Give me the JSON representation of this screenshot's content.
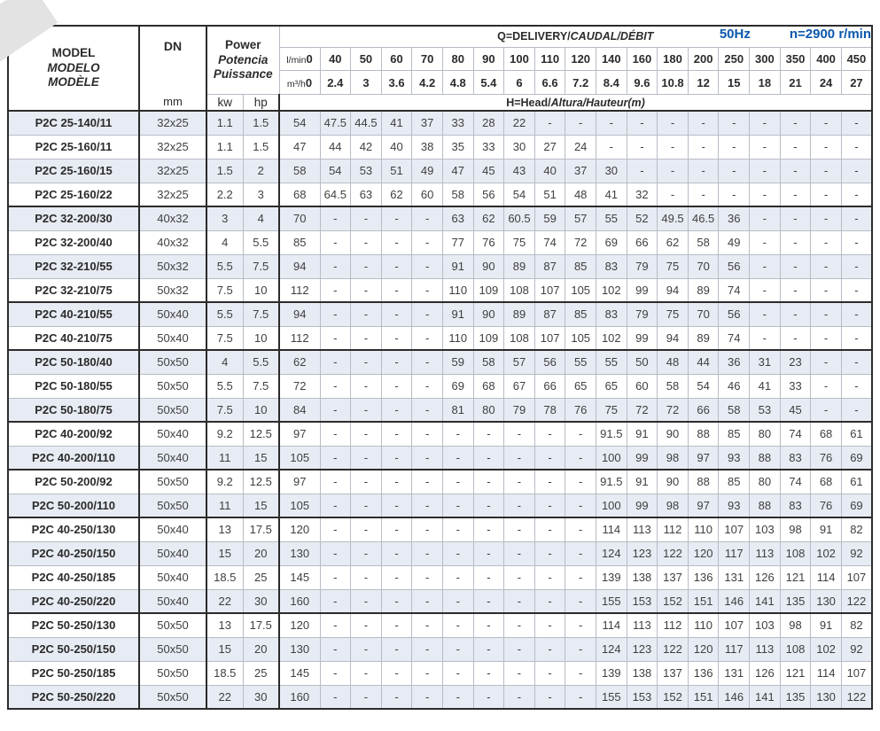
{
  "header": {
    "frequency": "50Hz",
    "speed": "n=2900 r/min",
    "accent_color": "#0a58ad"
  },
  "table": {
    "model_header": {
      "line1": "MODEL",
      "line2": "MODELO",
      "line3": "MODÈLE"
    },
    "dn_label": "DN",
    "dn_unit": "mm",
    "power_header": {
      "line1": "Power",
      "line2": "Potencia",
      "line3": "Puissance"
    },
    "power_units": {
      "kw": "kw",
      "hp": "hp"
    },
    "delivery_header": {
      "normal": "Q=DELIVERY/",
      "italic": "CAUDAL/DÉBIT"
    },
    "head_header": {
      "normal": "H=Head/",
      "italic": "Altura/Hauteur(m)"
    },
    "lmin_label": "l/min",
    "m3h_label": "m³/h",
    "lmin_values": [
      "0",
      "40",
      "50",
      "60",
      "70",
      "80",
      "90",
      "100",
      "110",
      "120",
      "140",
      "160",
      "180",
      "200",
      "250",
      "300",
      "350",
      "400",
      "450"
    ],
    "m3h_values": [
      "0",
      "2.4",
      "3",
      "3.6",
      "4.2",
      "4.8",
      "5.4",
      "6",
      "6.6",
      "7.2",
      "8.4",
      "9.6",
      "10.8",
      "12",
      "15",
      "18",
      "21",
      "24",
      "27"
    ],
    "rows": [
      {
        "model": "P2C 25-140/11",
        "dn": "32x25",
        "kw": "1.1",
        "hp": "1.5",
        "group_start": false,
        "heads": [
          "54",
          "47.5",
          "44.5",
          "41",
          "37",
          "33",
          "28",
          "22",
          "-",
          "-",
          "-",
          "-",
          "-",
          "-",
          "-",
          "-",
          "-",
          "-",
          "-"
        ]
      },
      {
        "model": "P2C 25-160/11",
        "dn": "32x25",
        "kw": "1.1",
        "hp": "1.5",
        "group_start": false,
        "heads": [
          "47",
          "44",
          "42",
          "40",
          "38",
          "35",
          "33",
          "30",
          "27",
          "24",
          "-",
          "-",
          "-",
          "-",
          "-",
          "-",
          "-",
          "-",
          "-"
        ]
      },
      {
        "model": "P2C 25-160/15",
        "dn": "32x25",
        "kw": "1.5",
        "hp": "2",
        "group_start": false,
        "heads": [
          "58",
          "54",
          "53",
          "51",
          "49",
          "47",
          "45",
          "43",
          "40",
          "37",
          "30",
          "-",
          "-",
          "-",
          "-",
          "-",
          "-",
          "-",
          "-"
        ]
      },
      {
        "model": "P2C 25-160/22",
        "dn": "32x25",
        "kw": "2.2",
        "hp": "3",
        "group_start": false,
        "heads": [
          "68",
          "64.5",
          "63",
          "62",
          "60",
          "58",
          "56",
          "54",
          "51",
          "48",
          "41",
          "32",
          "-",
          "-",
          "-",
          "-",
          "-",
          "-",
          "-"
        ]
      },
      {
        "model": "P2C 32-200/30",
        "dn": "40x32",
        "kw": "3",
        "hp": "4",
        "group_start": true,
        "heads": [
          "70",
          "-",
          "-",
          "-",
          "-",
          "63",
          "62",
          "60.5",
          "59",
          "57",
          "55",
          "52",
          "49.5",
          "46.5",
          "36",
          "-",
          "-",
          "-",
          "-"
        ]
      },
      {
        "model": "P2C 32-200/40",
        "dn": "40x32",
        "kw": "4",
        "hp": "5.5",
        "group_start": false,
        "heads": [
          "85",
          "-",
          "-",
          "-",
          "-",
          "77",
          "76",
          "75",
          "74",
          "72",
          "69",
          "66",
          "62",
          "58",
          "49",
          "-",
          "-",
          "-",
          "-"
        ]
      },
      {
        "model": "P2C 32-210/55",
        "dn": "50x32",
        "kw": "5.5",
        "hp": "7.5",
        "group_start": false,
        "heads": [
          "94",
          "-",
          "-",
          "-",
          "-",
          "91",
          "90",
          "89",
          "87",
          "85",
          "83",
          "79",
          "75",
          "70",
          "56",
          "-",
          "-",
          "-",
          "-"
        ]
      },
      {
        "model": "P2C 32-210/75",
        "dn": "50x32",
        "kw": "7.5",
        "hp": "10",
        "group_start": false,
        "heads": [
          "112",
          "-",
          "-",
          "-",
          "-",
          "110",
          "109",
          "108",
          "107",
          "105",
          "102",
          "99",
          "94",
          "89",
          "74",
          "-",
          "-",
          "-",
          "-"
        ]
      },
      {
        "model": "P2C 40-210/55",
        "dn": "50x40",
        "kw": "5.5",
        "hp": "7.5",
        "group_start": true,
        "heads": [
          "94",
          "-",
          "-",
          "-",
          "-",
          "91",
          "90",
          "89",
          "87",
          "85",
          "83",
          "79",
          "75",
          "70",
          "56",
          "-",
          "-",
          "-",
          "-"
        ]
      },
      {
        "model": "P2C 40-210/75",
        "dn": "50x40",
        "kw": "7.5",
        "hp": "10",
        "group_start": false,
        "heads": [
          "112",
          "-",
          "-",
          "-",
          "-",
          "110",
          "109",
          "108",
          "107",
          "105",
          "102",
          "99",
          "94",
          "89",
          "74",
          "-",
          "-",
          "-",
          "-"
        ]
      },
      {
        "model": "P2C 50-180/40",
        "dn": "50x50",
        "kw": "4",
        "hp": "5.5",
        "group_start": true,
        "heads": [
          "62",
          "-",
          "-",
          "-",
          "-",
          "59",
          "58",
          "57",
          "56",
          "55",
          "55",
          "50",
          "48",
          "44",
          "36",
          "31",
          "23",
          "-",
          "-"
        ]
      },
      {
        "model": "P2C 50-180/55",
        "dn": "50x50",
        "kw": "5.5",
        "hp": "7.5",
        "group_start": false,
        "heads": [
          "72",
          "-",
          "-",
          "-",
          "-",
          "69",
          "68",
          "67",
          "66",
          "65",
          "65",
          "60",
          "58",
          "54",
          "46",
          "41",
          "33",
          "-",
          "-"
        ]
      },
      {
        "model": "P2C 50-180/75",
        "dn": "50x50",
        "kw": "7.5",
        "hp": "10",
        "group_start": false,
        "heads": [
          "84",
          "-",
          "-",
          "-",
          "-",
          "81",
          "80",
          "79",
          "78",
          "76",
          "75",
          "72",
          "72",
          "66",
          "58",
          "53",
          "45",
          "-",
          "-"
        ]
      },
      {
        "model": "P2C 40-200/92",
        "dn": "50x40",
        "kw": "9.2",
        "hp": "12.5",
        "group_start": true,
        "heads": [
          "97",
          "-",
          "-",
          "-",
          "-",
          "-",
          "-",
          "-",
          "-",
          "-",
          "91.5",
          "91",
          "90",
          "88",
          "85",
          "80",
          "74",
          "68",
          "61"
        ]
      },
      {
        "model": "P2C 40-200/110",
        "dn": "50x40",
        "kw": "11",
        "hp": "15",
        "group_start": false,
        "heads": [
          "105",
          "-",
          "-",
          "-",
          "-",
          "-",
          "-",
          "-",
          "-",
          "-",
          "100",
          "99",
          "98",
          "97",
          "93",
          "88",
          "83",
          "76",
          "69"
        ]
      },
      {
        "model": "P2C 50-200/92",
        "dn": "50x50",
        "kw": "9.2",
        "hp": "12.5",
        "group_start": true,
        "heads": [
          "97",
          "-",
          "-",
          "-",
          "-",
          "-",
          "-",
          "-",
          "-",
          "-",
          "91.5",
          "91",
          "90",
          "88",
          "85",
          "80",
          "74",
          "68",
          "61"
        ]
      },
      {
        "model": "P2C 50-200/110",
        "dn": "50x50",
        "kw": "11",
        "hp": "15",
        "group_start": false,
        "heads": [
          "105",
          "-",
          "-",
          "-",
          "-",
          "-",
          "-",
          "-",
          "-",
          "-",
          "100",
          "99",
          "98",
          "97",
          "93",
          "88",
          "83",
          "76",
          "69"
        ]
      },
      {
        "model": "P2C 40-250/130",
        "dn": "50x40",
        "kw": "13",
        "hp": "17.5",
        "group_start": true,
        "heads": [
          "120",
          "-",
          "-",
          "-",
          "-",
          "-",
          "-",
          "-",
          "-",
          "-",
          "114",
          "113",
          "112",
          "110",
          "107",
          "103",
          "98",
          "91",
          "82"
        ]
      },
      {
        "model": "P2C 40-250/150",
        "dn": "50x40",
        "kw": "15",
        "hp": "20",
        "group_start": false,
        "heads": [
          "130",
          "-",
          "-",
          "-",
          "-",
          "-",
          "-",
          "-",
          "-",
          "-",
          "124",
          "123",
          "122",
          "120",
          "117",
          "113",
          "108",
          "102",
          "92"
        ]
      },
      {
        "model": "P2C 40-250/185",
        "dn": "50x40",
        "kw": "18.5",
        "hp": "25",
        "group_start": false,
        "heads": [
          "145",
          "-",
          "-",
          "-",
          "-",
          "-",
          "-",
          "-",
          "-",
          "-",
          "139",
          "138",
          "137",
          "136",
          "131",
          "126",
          "121",
          "114",
          "107"
        ]
      },
      {
        "model": "P2C 40-250/220",
        "dn": "50x40",
        "kw": "22",
        "hp": "30",
        "group_start": false,
        "heads": [
          "160",
          "-",
          "-",
          "-",
          "-",
          "-",
          "-",
          "-",
          "-",
          "-",
          "155",
          "153",
          "152",
          "151",
          "146",
          "141",
          "135",
          "130",
          "122"
        ]
      },
      {
        "model": "P2C 50-250/130",
        "dn": "50x50",
        "kw": "13",
        "hp": "17.5",
        "group_start": true,
        "heads": [
          "120",
          "-",
          "-",
          "-",
          "-",
          "-",
          "-",
          "-",
          "-",
          "-",
          "114",
          "113",
          "112",
          "110",
          "107",
          "103",
          "98",
          "91",
          "82"
        ]
      },
      {
        "model": "P2C 50-250/150",
        "dn": "50x50",
        "kw": "15",
        "hp": "20",
        "group_start": false,
        "heads": [
          "130",
          "-",
          "-",
          "-",
          "-",
          "-",
          "-",
          "-",
          "-",
          "-",
          "124",
          "123",
          "122",
          "120",
          "117",
          "113",
          "108",
          "102",
          "92"
        ]
      },
      {
        "model": "P2C 50-250/185",
        "dn": "50x50",
        "kw": "18.5",
        "hp": "25",
        "group_start": false,
        "heads": [
          "145",
          "-",
          "-",
          "-",
          "-",
          "-",
          "-",
          "-",
          "-",
          "-",
          "139",
          "138",
          "137",
          "136",
          "131",
          "126",
          "121",
          "114",
          "107"
        ]
      },
      {
        "model": "P2C 50-250/220",
        "dn": "50x50",
        "kw": "22",
        "hp": "30",
        "group_start": false,
        "heads": [
          "160",
          "-",
          "-",
          "-",
          "-",
          "-",
          "-",
          "-",
          "-",
          "-",
          "155",
          "153",
          "152",
          "151",
          "146",
          "141",
          "135",
          "130",
          "122"
        ]
      }
    ]
  }
}
